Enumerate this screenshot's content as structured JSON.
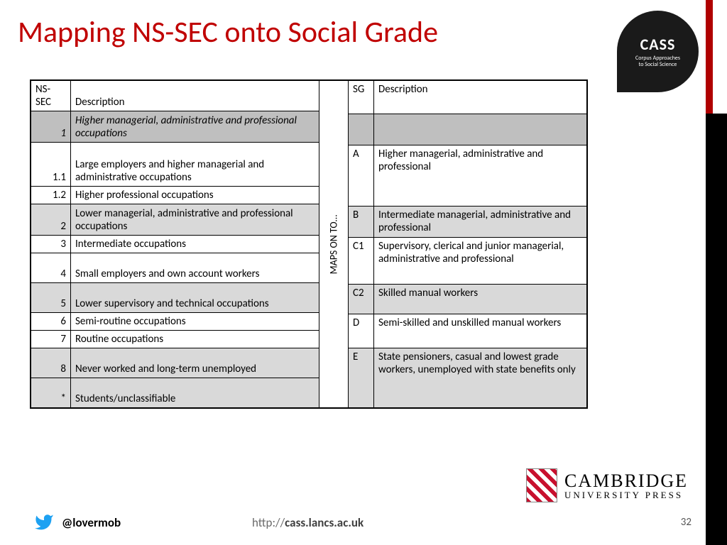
{
  "title": "Mapping NS-SEC onto Social Grade",
  "cass": {
    "name": "CASS",
    "tagline1": "Corpus Approaches",
    "tagline2": "to Social Science"
  },
  "maps_label": "MAPS ON TO…",
  "nssec": {
    "header_code": "NS-SEC",
    "header_desc": "Description",
    "rows": [
      {
        "code": "1",
        "desc": "Higher managerial, administrative and professional occupations",
        "shade": "dark",
        "italic": true,
        "h": 44
      },
      {
        "code": "1.1",
        "desc": "Large employers and higher managerial and administrative occupations",
        "shade": "none",
        "italic": false,
        "h": 62
      },
      {
        "code": "1.2",
        "desc": "Higher professional occupations",
        "shade": "none",
        "italic": false,
        "h": 24
      },
      {
        "code": "2",
        "desc": "Lower managerial, administrative and professional occupations",
        "shade": "light",
        "italic": false,
        "h": 44
      },
      {
        "code": "3",
        "desc": "Intermediate occupations",
        "shade": "none",
        "italic": false,
        "h": 24
      },
      {
        "code": "4",
        "desc": "Small employers and own account workers",
        "shade": "none",
        "italic": false,
        "h": 42
      },
      {
        "code": "5",
        "desc": "Lower supervisory and technical occupations",
        "shade": "light",
        "italic": false,
        "h": 42
      },
      {
        "code": "6",
        "desc": "Semi-routine occupations",
        "shade": "none",
        "italic": false,
        "h": 24
      },
      {
        "code": "7",
        "desc": "Routine occupations",
        "shade": "none",
        "italic": false,
        "h": 24
      },
      {
        "code": "8",
        "desc": "Never worked and long-term unemployed",
        "shade": "light",
        "italic": false,
        "h": 42
      },
      {
        "code": "*",
        "desc": "Students/unclassifiable",
        "shade": "light",
        "italic": false,
        "h": 42
      }
    ]
  },
  "sg": {
    "header_code": "SG",
    "header_desc": "Description",
    "rows": [
      {
        "code": "",
        "desc": "",
        "shade": "dark",
        "h": 44
      },
      {
        "code": "A",
        "desc": "Higher managerial, administrative and professional",
        "shade": "none",
        "h": 86
      },
      {
        "code": "B",
        "desc": "Intermediate managerial, administrative and professional",
        "shade": "light",
        "h": 44
      },
      {
        "code": "C1",
        "desc": "Supervisory, clerical and junior managerial, administrative and professional",
        "shade": "none",
        "h": 66
      },
      {
        "code": "C2",
        "desc": "Skilled manual workers",
        "shade": "light",
        "h": 42
      },
      {
        "code": "D",
        "desc": "Semi-skilled and unskilled manual workers",
        "shade": "none",
        "h": 48
      },
      {
        "code": "E",
        "desc": "State pensioners, casual and lowest grade workers, unemployed with state benefits only",
        "shade": "light",
        "h": 84
      }
    ]
  },
  "cambridge": {
    "line1": "CAMBRIDGE",
    "line2": "UNIVERSITY PRESS"
  },
  "footer": {
    "handle": "@lovermob",
    "url_prefix": "http://",
    "url_bold": "cass.lancs.ac.uk",
    "page_number": "32"
  },
  "colors": {
    "title": "#c00000",
    "red_stripe": "#b00000",
    "black_stripe": "#000000",
    "shade_dark": "#bfbfbf",
    "shade_light": "#d9d9d9",
    "twitter": "#1da1f2"
  }
}
